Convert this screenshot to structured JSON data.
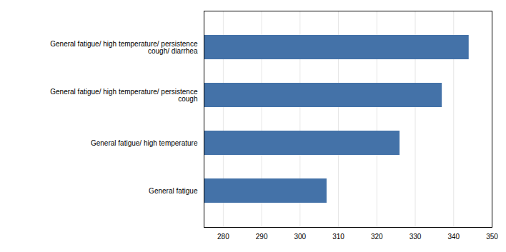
{
  "chart_data": {
    "type": "bar",
    "orientation": "horizontal",
    "categories": [
      "General fatigue/ high temperature/ persistence\ncough/ diarrhea",
      "General fatigue/ high temperature/ persistence\ncough",
      "General fatigue/ high temperature",
      "General fatigue"
    ],
    "values": [
      344,
      337,
      326,
      307
    ],
    "color": "#4472a8",
    "xlim": [
      275,
      350
    ],
    "xticks": [
      280,
      290,
      300,
      310,
      320,
      330,
      340,
      350
    ],
    "grid": true
  }
}
